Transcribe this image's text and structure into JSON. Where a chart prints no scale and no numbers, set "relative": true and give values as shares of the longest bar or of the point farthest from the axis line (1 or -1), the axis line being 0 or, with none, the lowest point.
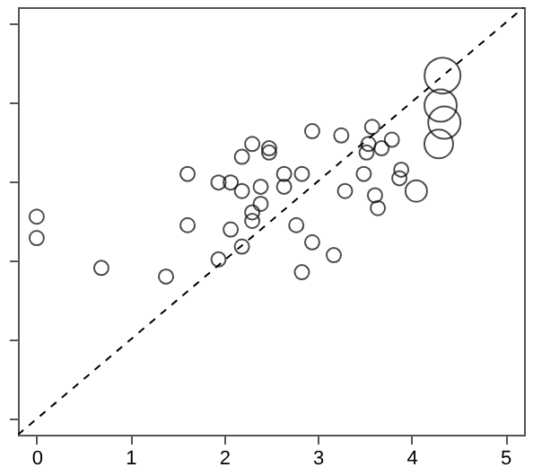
{
  "chart_data": {
    "type": "bubble",
    "relative": true,
    "xlim": [
      -0.2,
      5.2
    ],
    "xticks": [
      0,
      1,
      2,
      3,
      4,
      5
    ],
    "tick_labels": "x",
    "grid": false,
    "marker": "circle",
    "series": [
      {
        "color": "#000000",
        "x": [
          0,
          0,
          0.69,
          1.38,
          1.61,
          1.61,
          1.94,
          1.94,
          2.07,
          2.07,
          2.19,
          2.19,
          2.19,
          2.3,
          2.3,
          2.3,
          2.39,
          2.39,
          2.48,
          2.48,
          2.64,
          2.64,
          2.77,
          2.83,
          2.83,
          2.94,
          2.94,
          3.17,
          3.25,
          3.29,
          3.49,
          3.52,
          3.54,
          3.58,
          3.61,
          3.64,
          3.68,
          3.79,
          3.87,
          3.89,
          4.05,
          4.29,
          4.31,
          4.35,
          4.33
        ],
        "values": [
          0.51,
          0.46,
          0.39,
          0.37,
          0.49,
          0.61,
          0.41,
          0.59,
          0.48,
          0.59,
          0.44,
          0.57,
          0.65,
          0.52,
          0.5,
          0.68,
          0.58,
          0.54,
          0.67,
          0.66,
          0.61,
          0.58,
          0.49,
          0.38,
          0.61,
          0.45,
          0.71,
          0.42,
          0.7,
          0.57,
          0.61,
          0.66,
          0.68,
          0.72,
          0.56,
          0.53,
          0.67,
          0.69,
          0.6,
          0.62,
          0.57,
          0.68,
          0.77,
          0.73,
          0.84
        ],
        "sizes": [
          0.16,
          0.16,
          0.16,
          0.16,
          0.16,
          0.16,
          0.16,
          0.16,
          0.16,
          0.16,
          0.16,
          0.16,
          0.16,
          0.16,
          0.16,
          0.16,
          0.16,
          0.16,
          0.16,
          0.16,
          0.16,
          0.16,
          0.16,
          0.16,
          0.16,
          0.16,
          0.16,
          0.16,
          0.16,
          0.16,
          0.16,
          0.16,
          0.16,
          0.16,
          0.16,
          0.16,
          0.16,
          0.16,
          0.16,
          0.16,
          0.36,
          0.64,
          0.81,
          0.81,
          1
        ]
      },
      {
        "type": "line",
        "color": "#000000",
        "line_style": "dashed",
        "marker": "none",
        "x": [
          -0.2,
          5.2
        ],
        "values": [
          0,
          1
        ]
      }
    ]
  }
}
